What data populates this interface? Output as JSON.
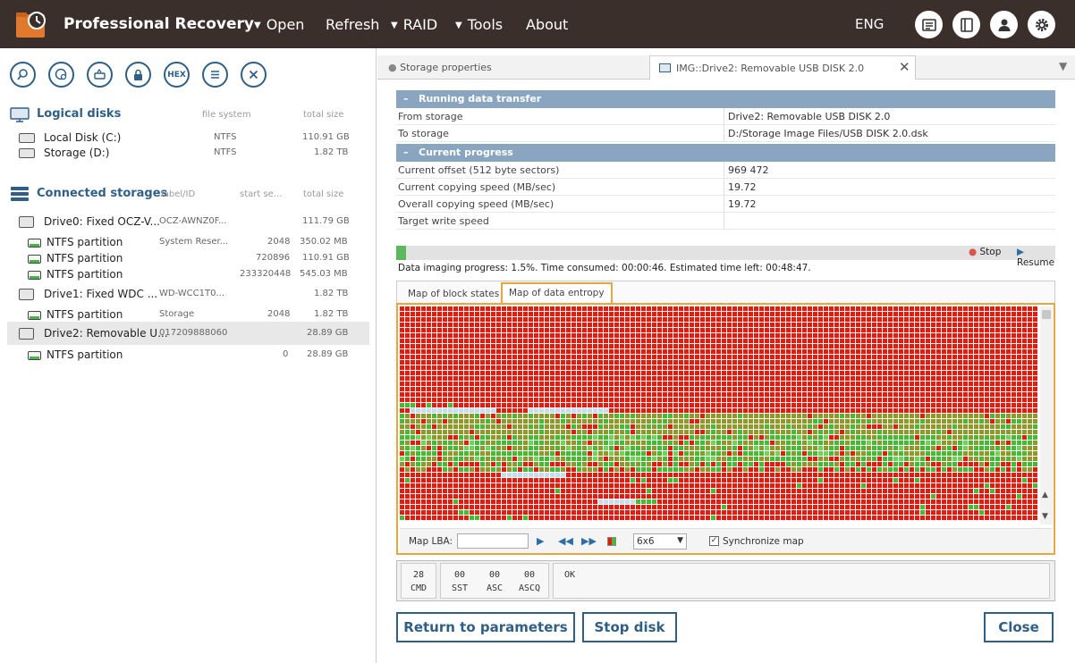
{
  "app": {
    "title": "Professional Recovery",
    "lang": "ENG"
  },
  "menu": [
    "Open",
    "Refresh",
    "RAID",
    "Tools",
    "About"
  ],
  "toolbar": {
    "hex_label": "HEX"
  },
  "logical": {
    "title": "Logical disks",
    "col_fs": "file system",
    "col_size": "total size",
    "items": [
      {
        "name": "Local Disk (C:)",
        "fs": "NTFS",
        "size": "110.91 GB"
      },
      {
        "name": "Storage (D:)",
        "fs": "NTFS",
        "size": "1.82 TB"
      }
    ]
  },
  "connected": {
    "title": "Connected storages",
    "col_label": "label/ID",
    "col_start": "start se...",
    "col_size": "total size",
    "items": [
      {
        "name": "Drive0: Fixed OCZ-V...",
        "label": "OCZ-AWNZ0F...",
        "start": "",
        "size": "111.79 GB"
      },
      {
        "name": "NTFS partition",
        "label": "System Reser...",
        "start": "2048",
        "size": "350.02 MB"
      },
      {
        "name": "NTFS partition",
        "label": "",
        "start": "720896",
        "size": "110.91 GB"
      },
      {
        "name": "NTFS partition",
        "label": "",
        "start": "233320448",
        "size": "545.03 MB"
      },
      {
        "name": "Drive1: Fixed WDC ...",
        "label": "WD-WCC1T0...",
        "start": "",
        "size": "1.82 TB"
      },
      {
        "name": "NTFS partition",
        "label": "Storage",
        "start": "2048",
        "size": "1.82 TB"
      },
      {
        "name": "Drive2: Removable U...",
        "label": "017209888060",
        "start": "",
        "size": "28.89 GB"
      },
      {
        "name": "NTFS partition",
        "label": "",
        "start": "0",
        "size": "28.89 GB"
      }
    ]
  },
  "tabs": {
    "storage_props": "Storage properties",
    "img": "IMG::Drive2: Removable USB DISK 2.0"
  },
  "transfer": {
    "title": "Running data transfer",
    "rows": [
      {
        "k": "From storage",
        "v": "Drive2: Removable USB DISK 2.0"
      },
      {
        "k": "To storage",
        "v": "D:/Storage Image Files/USB DISK 2.0.dsk"
      }
    ]
  },
  "progress": {
    "title": "Current progress",
    "rows": [
      {
        "k": "Current offset (512 byte sectors)",
        "v": "969 472"
      },
      {
        "k": "Current copying speed (MB/sec)",
        "v": "19.72"
      },
      {
        "k": "Overall copying speed (MB/sec)",
        "v": "19.72"
      },
      {
        "k": "Target write speed",
        "v": ""
      }
    ],
    "fraction": 0.015,
    "stop": "Stop",
    "resume": "Resume",
    "text": "Data imaging progress: 1.5%. Time consumed: 00:00:46. Estimated time left: 00:48:47."
  },
  "maptabs": {
    "blocks": "Map of block states",
    "entropy": "Map of data entropy"
  },
  "mapctrl": {
    "lba_label": "Map LBA:",
    "size": "6x6",
    "sync": "Synchronize map"
  },
  "colors": {
    "high": "#e31c0f",
    "mid": "#8d9a2a",
    "low": "#46b935",
    "lowlight": "#6fd35a",
    "empty": "#c8dcf0",
    "accent": "#e8a73c"
  },
  "status": {
    "cmd_val": "28",
    "cmd_lbl": "CMD",
    "sst_val": "00",
    "sst_lbl": "SST",
    "asc_val": "00",
    "asc_lbl": "ASC",
    "ascq_val": "00",
    "ascq_lbl": "ASCQ",
    "msg": "OK"
  },
  "buttons": {
    "return": "Return to parameters",
    "stop": "Stop disk",
    "close": "Close"
  }
}
